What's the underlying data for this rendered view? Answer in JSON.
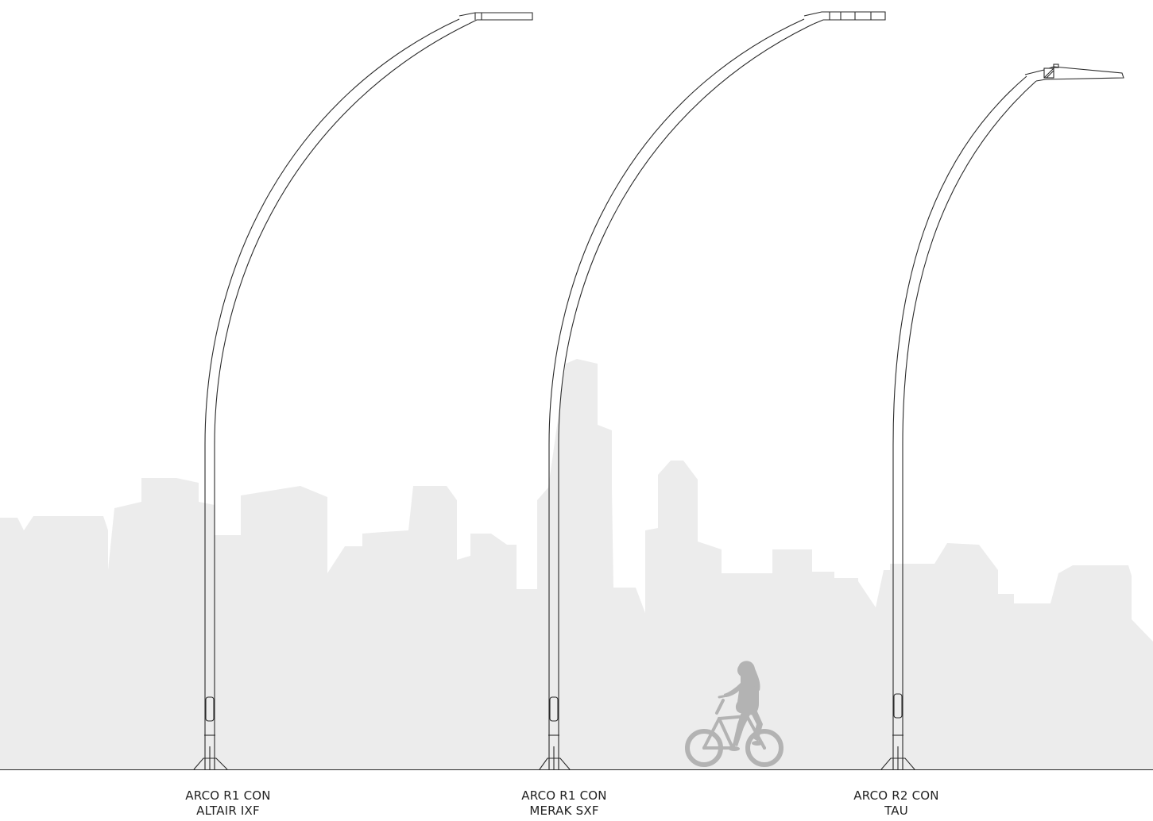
{
  "colors": {
    "background": "#ffffff",
    "skyline": "#ececec",
    "line": "#2a2a2a",
    "cyclist": "#b3b3b3",
    "caption_text": "#222222"
  },
  "poles": [
    {
      "line1": "ARCO R1 CON",
      "line2": "ALTAIR IXF"
    },
    {
      "line1": "ARCO R1 CON",
      "line2": "MERAK SXF"
    },
    {
      "line1": "ARCO R2 CON",
      "line2": "TAU"
    }
  ]
}
